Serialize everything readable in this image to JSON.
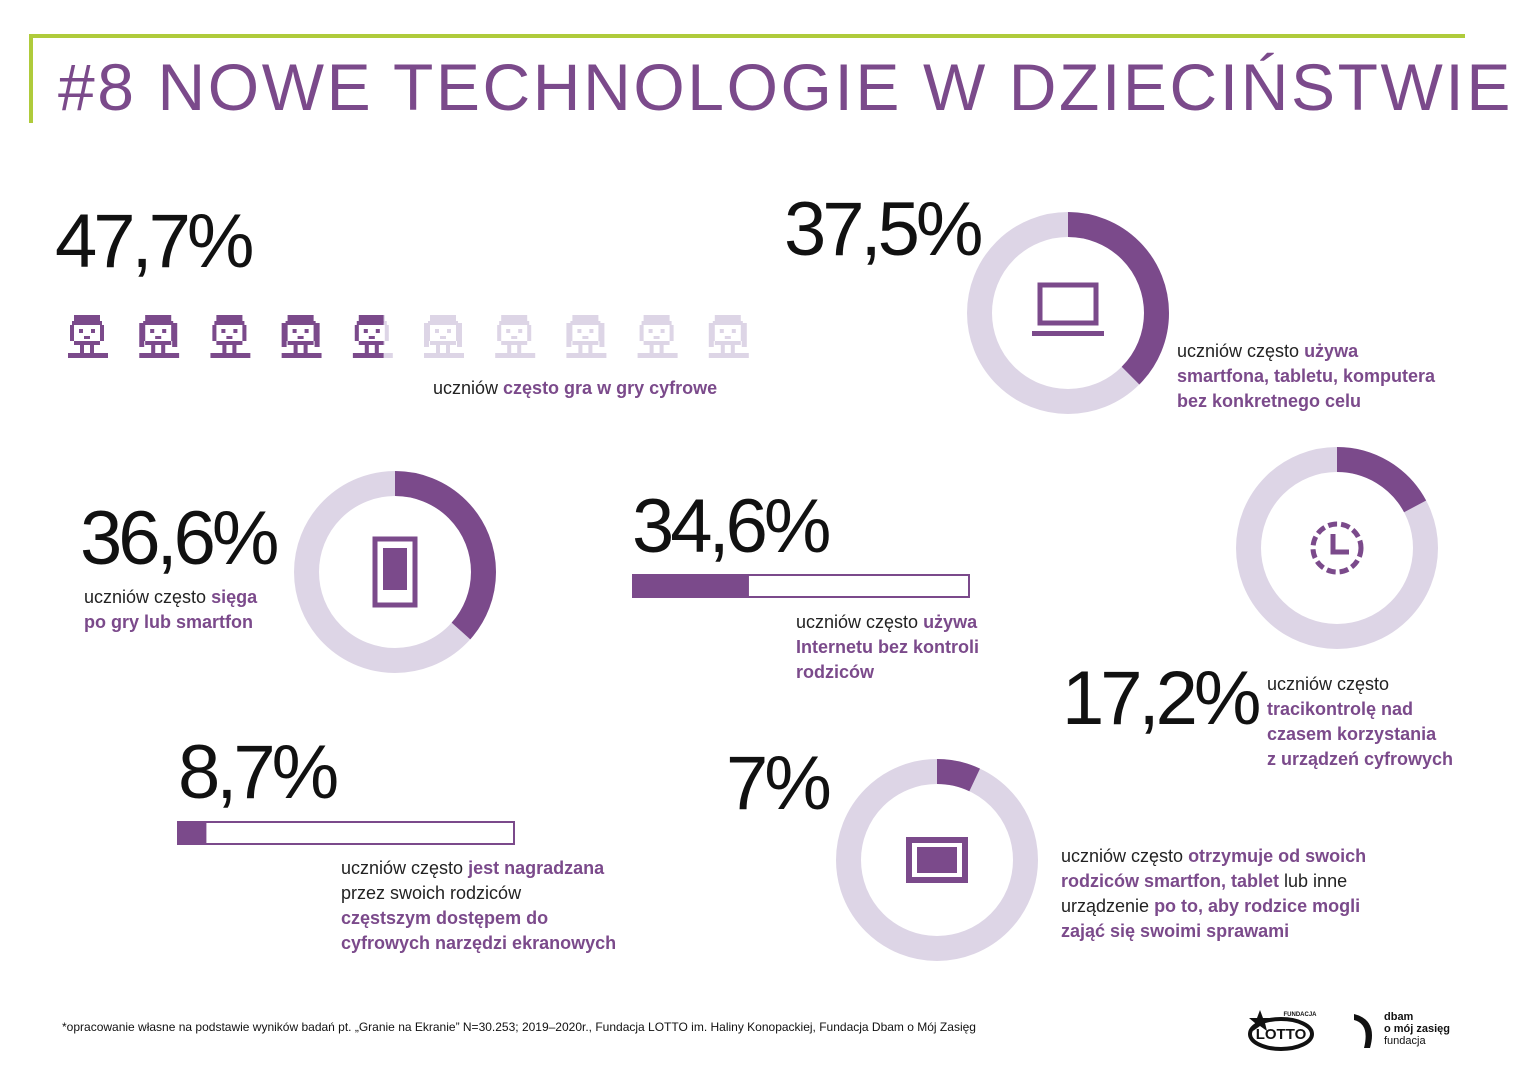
{
  "title": "#8 NOWE TECHNOLOGIE W DZIECIŃSTWIE",
  "colors": {
    "accent": "#7b4a8b",
    "light": "#ddd5e6",
    "frame": "#afcb3b"
  },
  "chart_data": [
    {
      "id": "games",
      "type": "pictogram",
      "value": 47.7,
      "display": "47,7%",
      "icons": 10,
      "icon": "child-face-icon",
      "label": [
        [
          {
            "t": "uczniów "
          },
          {
            "t": "często gra w gry cyfrowe",
            "b": true
          }
        ]
      ]
    },
    {
      "id": "aimless",
      "type": "donut",
      "value": 37.5,
      "display": "37,5%",
      "icon": "laptop-icon",
      "label": [
        [
          {
            "t": "uczniów często "
          },
          {
            "t": "używa",
            "b": true
          }
        ],
        [
          {
            "t": "smartfona, tabletu, komputera",
            "b": true
          }
        ],
        [
          {
            "t": "bez konkretnego celu",
            "b": true
          }
        ]
      ]
    },
    {
      "id": "reach",
      "type": "donut",
      "value": 36.6,
      "display": "36,6%",
      "icon": "smartphone-icon",
      "label": [
        [
          {
            "t": "uczniów często "
          },
          {
            "t": "sięga",
            "b": true
          }
        ],
        [
          {
            "t": "po gry lub smartfon",
            "b": true
          }
        ]
      ]
    },
    {
      "id": "internet",
      "type": "bar",
      "value": 34.6,
      "display": "34,6%",
      "label": [
        [
          {
            "t": "uczniów często "
          },
          {
            "t": "używa",
            "b": true
          }
        ],
        [
          {
            "t": "Internetu bez kontroli",
            "b": true
          }
        ],
        [
          {
            "t": "rodziców",
            "b": true
          }
        ]
      ]
    },
    {
      "id": "control",
      "type": "donut",
      "value": 17.2,
      "display": "17,2%",
      "icon": "clock-icon",
      "label": [
        [
          {
            "t": "uczniów często"
          }
        ],
        [
          {
            "t": "tracikontrolę nad",
            "b": true
          }
        ],
        [
          {
            "t": "czasem korzystania",
            "b": true
          }
        ],
        [
          {
            "t": "z urządzeń cyfrowych",
            "b": true
          }
        ]
      ]
    },
    {
      "id": "reward",
      "type": "bar",
      "value": 8.7,
      "display": "8,7%",
      "label": [
        [
          {
            "t": "uczniów często "
          },
          {
            "t": "jest nagradzana",
            "b": true
          }
        ],
        [
          {
            "t": "przez swoich rodziców"
          }
        ],
        [
          {
            "t": "częstszym dostępem do",
            "b": true
          }
        ],
        [
          {
            "t": "cyfrowych narzędzi ekranowych",
            "b": true
          }
        ]
      ]
    },
    {
      "id": "babysit",
      "type": "donut",
      "value": 7,
      "display": "7%",
      "icon": "tablet-icon",
      "label": [
        [
          {
            "t": "uczniów często "
          },
          {
            "t": "otrzymuje od swoich",
            "b": true
          }
        ],
        [
          {
            "t": "rodziców smartfon, tablet",
            "b": true
          },
          {
            "t": " lub inne"
          }
        ],
        [
          {
            "t": "urządzenie "
          },
          {
            "t": "po to, aby rodzice mogli",
            "b": true
          }
        ],
        [
          {
            "t": "zająć się swoimi sprawami",
            "b": true
          }
        ]
      ]
    }
  ],
  "footnote": "*opracowanie własne na podstawie wyników badań pt. „Granie na Ekranie” N=30.253; 2019–2020r., Fundacja LOTTO im. Haliny Konopackiej, Fundacja Dbam o Mój Zasięg",
  "logos": {
    "lotto": "FUNDACJA LOTTO im. H. KONOPACKIEJ",
    "dbam_line1": "dbam",
    "dbam_line2": "o mój zasięg",
    "dbam_line3": "fundacja"
  }
}
